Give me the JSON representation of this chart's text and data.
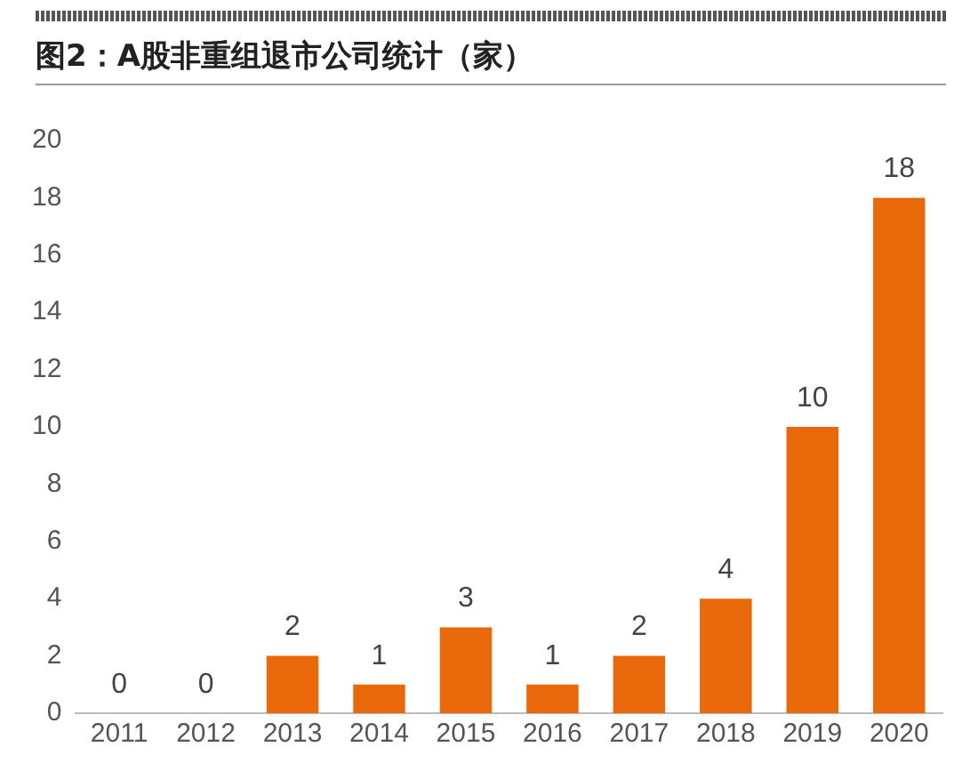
{
  "chart_data": {
    "type": "bar",
    "title": "图2：A股非重组退市公司统计（家）",
    "categories": [
      "2011",
      "2012",
      "2013",
      "2014",
      "2015",
      "2016",
      "2017",
      "2018",
      "2019",
      "2020"
    ],
    "values": [
      0,
      0,
      2,
      1,
      3,
      1,
      2,
      4,
      10,
      18
    ],
    "color": "#e8680a",
    "ylim": [
      0,
      20
    ],
    "yticks": [
      0,
      2,
      4,
      6,
      8,
      10,
      12,
      14,
      16,
      18,
      20
    ],
    "grid": false,
    "data_labels": true
  }
}
